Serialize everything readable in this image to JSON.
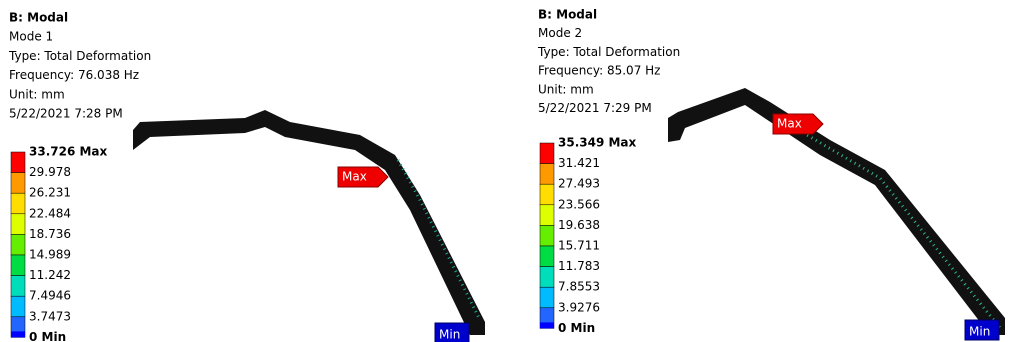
{
  "panels": [
    {
      "title": "B: Modal",
      "mode": "Mode 1",
      "type": "Type: Total Deformation",
      "frequency": "Frequency: 76.038 Hz",
      "unit": "Unit: mm",
      "date": "5/22/2021 7:28 PM",
      "legend": [
        "33.726 Max",
        "29.978",
        "26.231",
        "22.484",
        "18.736",
        "14.989",
        "11.242",
        "7.4946",
        "3.7473",
        "0 Min"
      ],
      "max_tag": "Max",
      "min_tag": "Min"
    },
    {
      "title": "B: Modal",
      "mode": "Mode 2",
      "type": "Type: Total Deformation",
      "frequency": "Frequency: 85.07 Hz",
      "unit": "Unit: mm",
      "date": "5/22/2021 7:29 PM",
      "legend": [
        "35.349 Max",
        "31.421",
        "27.493",
        "23.566",
        "19.638",
        "15.711",
        "11.783",
        "7.8553",
        "3.9276",
        "0 Min"
      ],
      "max_tag": "Max",
      "min_tag": "Min"
    }
  ]
}
